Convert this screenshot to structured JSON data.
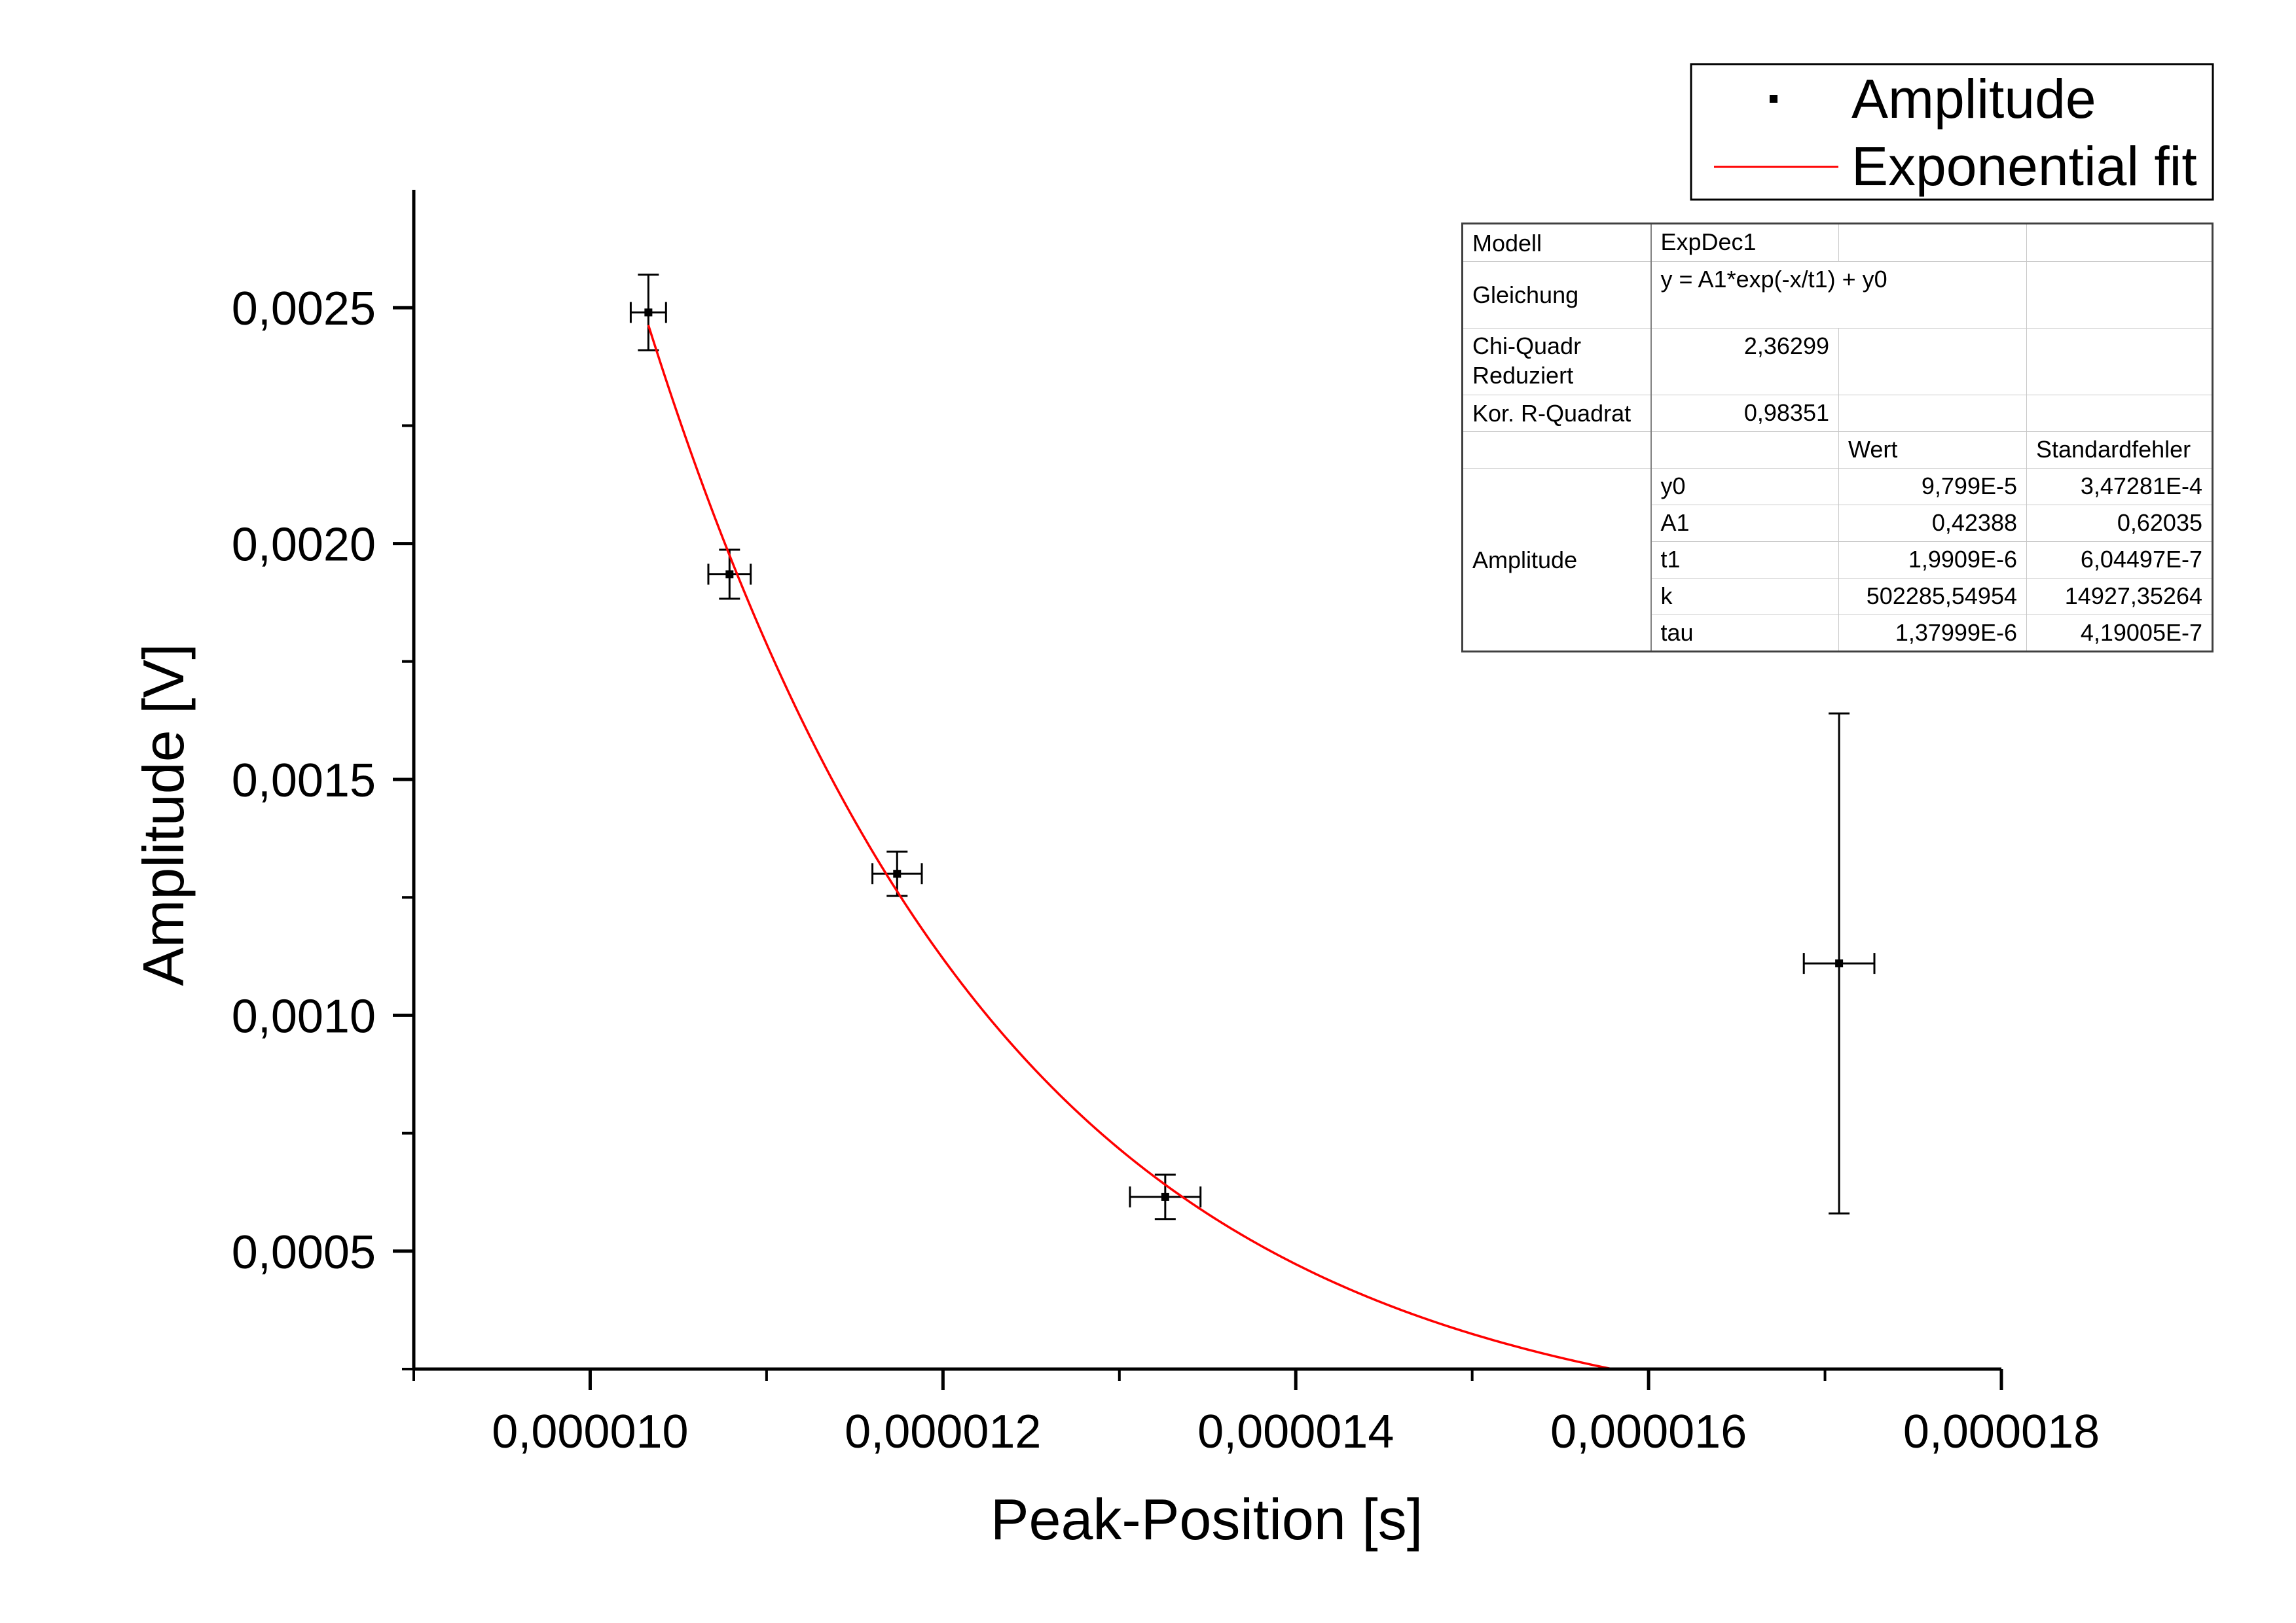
{
  "chart_data": {
    "type": "scatter",
    "title": "",
    "xlabel": "Peak-Position [s]",
    "ylabel": "Amplitude [V]",
    "xlim": [
      9e-06,
      1.8e-05
    ],
    "ylim": [
      0.00025,
      0.00275
    ],
    "x_major_ticks": [
      1e-05,
      1.2e-05,
      1.4e-05,
      1.6e-05,
      1.8e-05
    ],
    "x_tick_labels": [
      "0,000010",
      "0,000012",
      "0,000014",
      "0,000016",
      "0,000018"
    ],
    "x_minor_ticks": [
      9e-06,
      1.1e-05,
      1.3e-05,
      1.5e-05,
      1.7e-05
    ],
    "y_major_ticks": [
      0.0005,
      0.001,
      0.0015,
      0.002,
      0.0025
    ],
    "y_tick_labels": [
      "0,0005",
      "0,0010",
      "0,0015",
      "0,0020",
      "0,0025"
    ],
    "y_minor_ticks": [
      0.00025,
      0.00075,
      0.00125,
      0.00175,
      0.00225
    ],
    "grid": false,
    "legend_position": "top-right",
    "series": [
      {
        "name": "Amplitude",
        "type": "scatter",
        "color": "#000000",
        "points": [
          {
            "x": 1.033e-05,
            "y": 0.00249,
            "yerr": 8e-05,
            "xerr": 1e-07
          },
          {
            "x": 1.079e-05,
            "y": 0.001935,
            "yerr": 5.2e-05,
            "xerr": 1.2e-07
          },
          {
            "x": 1.174e-05,
            "y": 0.0013,
            "yerr": 4.7e-05,
            "xerr": 1.4e-07
          },
          {
            "x": 1.326e-05,
            "y": 0.000615,
            "yerr": 4.7e-05,
            "xerr": 2e-07
          },
          {
            "x": 1.708e-05,
            "y": 0.00111,
            "yerr": 0.00053,
            "xerr": 2e-07
          }
        ]
      },
      {
        "name": "Exponential fit",
        "type": "line",
        "color": "#ff0000",
        "model": {
          "y0": 9.799e-05,
          "A1": 0.42388,
          "t1": 1.9909e-06
        },
        "x_range": [
          1.033e-05,
          1.6e-05
        ]
      }
    ]
  },
  "fit_table": {
    "model_label": "Modell",
    "model_value": "ExpDec1",
    "equation_label": "Gleichung",
    "equation_value": "y = A1*exp(-x/t1) + y0",
    "chi_label_1": "Chi-Quadr",
    "chi_label_2": "Reduziert",
    "chi_value": "2,36299",
    "r2_label": "Kor. R-Quadrat",
    "r2_value": "0,98351",
    "col_value": "Wert",
    "col_error": "Standardfehler",
    "group_label": "Amplitude",
    "params": [
      {
        "name": "y0",
        "value": "9,799E-5",
        "error": "3,47281E-4"
      },
      {
        "name": "A1",
        "value": "0,42388",
        "error": "0,62035"
      },
      {
        "name": "t1",
        "value": "1,9909E-6",
        "error": "6,04497E-7"
      },
      {
        "name": "k",
        "value": "502285,54954",
        "error": "14927,35264"
      },
      {
        "name": "tau",
        "value": "1,37999E-6",
        "error": "4,19005E-7"
      }
    ]
  }
}
